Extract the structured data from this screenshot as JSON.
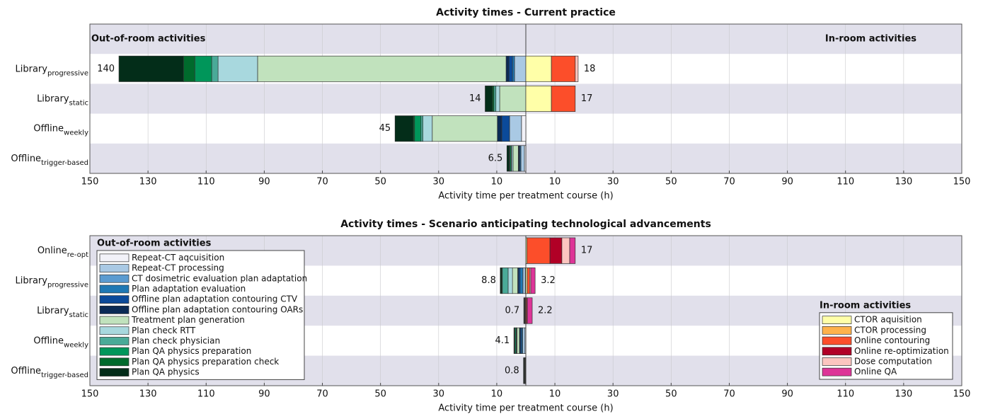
{
  "chart_data": [
    {
      "type": "bar",
      "title": "Activity times - Current practice",
      "xlabel": "Activity time per treatment course (h)",
      "xlim": [
        -150,
        150
      ],
      "xticks": [
        {
          "value": -150,
          "label": "150"
        },
        {
          "value": -130,
          "label": "130"
        },
        {
          "value": -110,
          "label": "110"
        },
        {
          "value": -90,
          "label": "90"
        },
        {
          "value": -70,
          "label": "70"
        },
        {
          "value": -50,
          "label": "50"
        },
        {
          "value": -30,
          "label": "30"
        },
        {
          "value": -10,
          "label": "10"
        },
        10,
        30,
        50,
        70,
        90,
        110,
        130,
        150
      ],
      "grid": true,
      "categories": [
        null,
        {
          "label": "Library",
          "subscript": "progressive"
        },
        {
          "label": "Library",
          "subscript": "static"
        },
        {
          "label": "Offline",
          "subscript": "weekly"
        },
        {
          "label": "Offline",
          "subscript": "trigger-based"
        }
      ],
      "series": [
        {
          "color": "#f2f2f8",
          "side": "left",
          "values": [
            null,
            0,
            0,
            1.5,
            0.5
          ]
        },
        {
          "color": "#a9c9e4",
          "side": "left",
          "values": [
            null,
            3.9,
            0,
            4.1,
            1.2
          ]
        },
        {
          "color": "#5b9bd0",
          "side": "left",
          "values": [
            null,
            0,
            0,
            0,
            0
          ]
        },
        {
          "color": "#1f78b4",
          "side": "left",
          "values": [
            null,
            0.7,
            0,
            0,
            0.3
          ]
        },
        {
          "color": "#0b4a9a",
          "side": "left",
          "values": [
            null,
            1.2,
            0,
            2.7,
            0.3
          ]
        },
        {
          "color": "#0a2a55",
          "side": "left",
          "values": [
            null,
            1.0,
            0,
            1.5,
            0.3
          ]
        },
        {
          "color": "#c1e2bd",
          "side": "left",
          "values": [
            null,
            85.5,
            9,
            22.4,
            1.8
          ]
        },
        {
          "color": "#a8d8de",
          "side": "left",
          "values": [
            null,
            13.6,
            1.3,
            3.2,
            0.5
          ]
        },
        {
          "color": "#4aaa98",
          "side": "left",
          "values": [
            null,
            2.2,
            0.7,
            0.7,
            0.2
          ]
        },
        {
          "color": "#00965a",
          "side": "left",
          "values": [
            null,
            5.8,
            0,
            2.2,
            0.4
          ]
        },
        {
          "color": "#006a2c",
          "side": "left",
          "values": [
            null,
            3.9,
            0.5,
            0.4,
            0.2
          ]
        },
        {
          "color": "#032d19",
          "side": "left",
          "values": [
            null,
            22.2,
            2.5,
            6.3,
            0.8
          ]
        },
        {
          "color": "#ffffa8",
          "side": "right",
          "values": [
            null,
            8.8,
            8.8,
            0,
            0
          ]
        },
        {
          "color": "#feb24c",
          "side": "right",
          "values": [
            null,
            0,
            0,
            0,
            0
          ]
        },
        {
          "color": "#fc4e2a",
          "side": "right",
          "values": [
            null,
            8.2,
            8.2,
            0,
            0
          ]
        },
        {
          "color": "#b10026",
          "side": "right",
          "values": [
            null,
            0,
            0,
            0,
            0
          ]
        },
        {
          "color": "#fcc5c0",
          "side": "right",
          "values": [
            null,
            1.0,
            0,
            0,
            0
          ]
        },
        {
          "color": "#dd3497",
          "side": "right",
          "values": [
            null,
            0,
            0,
            0,
            0
          ]
        }
      ],
      "totals_left": [
        null,
        140,
        14,
        45,
        6.5
      ],
      "totals_right": [
        null,
        18,
        17,
        null,
        null
      ],
      "annotations": [
        {
          "text": "Out-of-room activities",
          "loc": "upper left"
        },
        {
          "text": "In-room activities",
          "loc": "upper right"
        }
      ]
    },
    {
      "type": "bar",
      "title": "Activity times - Scenario anticipating technological advancements",
      "xlabel": "Activity time per treatment course (h)",
      "xlim": [
        -150,
        150
      ],
      "xticks": [
        {
          "value": -150,
          "label": "150"
        },
        {
          "value": -130,
          "label": "130"
        },
        {
          "value": -110,
          "label": "110"
        },
        {
          "value": -90,
          "label": "90"
        },
        {
          "value": -70,
          "label": "70"
        },
        {
          "value": -50,
          "label": "50"
        },
        {
          "value": -30,
          "label": "30"
        },
        {
          "value": -10,
          "label": "10"
        },
        10,
        30,
        50,
        70,
        90,
        110,
        130,
        150
      ],
      "grid": true,
      "categories": [
        {
          "label": "Online",
          "subscript": "re-opt"
        },
        {
          "label": "Library",
          "subscript": "progressive"
        },
        {
          "label": "Library",
          "subscript": "static"
        },
        {
          "label": "Offline",
          "subscript": "weekly"
        },
        {
          "label": "Offline",
          "subscript": "trigger-based"
        }
      ],
      "series": [
        {
          "name": "Repeat-CT aqcuisition",
          "color": "#f2f2f8",
          "side": "left",
          "values": [
            0,
            0.2,
            0,
            0.3,
            0.1
          ]
        },
        {
          "name": "Repeat-CT processing",
          "color": "#a9c9e4",
          "side": "left",
          "values": [
            0,
            0.8,
            0.2,
            0.8,
            0.1
          ]
        },
        {
          "name": "CT dosimetric evaluation plan adaptation",
          "color": "#5b9bd0",
          "side": "left",
          "values": [
            0,
            0,
            0,
            0,
            0
          ]
        },
        {
          "name": "Plan adaptation evaluation",
          "color": "#1f78b4",
          "side": "left",
          "values": [
            0,
            1.0,
            0.1,
            0.4,
            0.1
          ]
        },
        {
          "name": "Offline plan adaptation contouring CTV",
          "color": "#0b4a9a",
          "side": "left",
          "values": [
            0,
            0.5,
            0.1,
            0.4,
            0
          ]
        },
        {
          "name": "Offline plan adaptation contouring OARs",
          "color": "#0a2a55",
          "side": "left",
          "values": [
            0,
            0.3,
            0.1,
            0.3,
            0
          ]
        },
        {
          "name": "Treatment plan generation",
          "color": "#c1e2bd",
          "side": "left",
          "values": [
            0,
            1.8,
            0.1,
            0.8,
            0.1
          ]
        },
        {
          "name": "Plan check RTT",
          "color": "#a8d8de",
          "side": "left",
          "values": [
            0,
            1.5,
            0,
            0.2,
            0.1
          ]
        },
        {
          "name": "Plan check physician",
          "color": "#4aaa98",
          "side": "left",
          "values": [
            0,
            2.0,
            0,
            0.2,
            0
          ]
        },
        {
          "name": "Plan QA physics preparation",
          "color": "#00965a",
          "side": "left",
          "values": [
            0,
            0,
            0,
            0.4,
            0.1
          ]
        },
        {
          "name": "Plan QA physics preparation check",
          "color": "#006a2c",
          "side": "left",
          "values": [
            0,
            0.2,
            0,
            0.1,
            0
          ]
        },
        {
          "name": "Plan QA physics",
          "color": "#032d19",
          "side": "left",
          "values": [
            0,
            0.5,
            0.1,
            0.2,
            0.2
          ]
        },
        {
          "name": "CTOR aquisition",
          "color": "#ffffa8",
          "side": "right",
          "values": [
            0.4,
            0.5,
            0,
            0,
            0
          ]
        },
        {
          "name": "CTOR processing",
          "color": "#feb24c",
          "side": "right",
          "values": [
            0,
            0,
            0,
            0,
            0
          ]
        },
        {
          "name": "Online contouring",
          "color": "#fc4e2a",
          "side": "right",
          "values": [
            7.9,
            0.8,
            0.3,
            0,
            0
          ]
        },
        {
          "name": "Online re-optimization",
          "color": "#b10026",
          "side": "right",
          "values": [
            4.1,
            0,
            0,
            0,
            0
          ]
        },
        {
          "name": "Dose computation",
          "color": "#fcc5c0",
          "side": "right",
          "values": [
            2.7,
            0.4,
            0.2,
            0,
            0
          ]
        },
        {
          "name": "Online QA",
          "color": "#dd3497",
          "side": "right",
          "values": [
            1.9,
            1.5,
            1.7,
            0,
            0
          ]
        }
      ],
      "totals_left": [
        null,
        8.8,
        0.7,
        4.1,
        0.8
      ],
      "totals_right": [
        17,
        3.2,
        2.2,
        null,
        null
      ],
      "legends": [
        {
          "title": "Out-of-room activities",
          "side": "left",
          "loc": "upper left"
        },
        {
          "title": "In-room activities",
          "side": "right",
          "loc": "lower right"
        }
      ]
    }
  ]
}
